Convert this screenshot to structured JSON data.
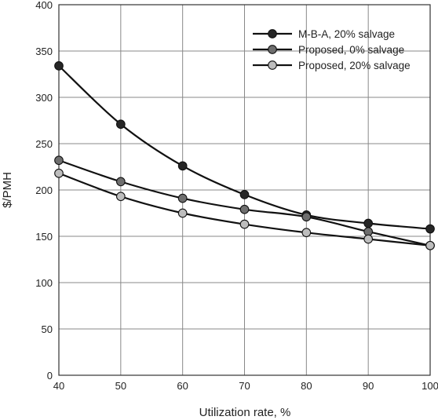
{
  "chart_data": {
    "type": "line",
    "title": "",
    "xlabel": "Utilization rate, %",
    "ylabel": "$/PMH",
    "x": [
      40,
      50,
      60,
      70,
      80,
      90,
      100
    ],
    "xlim": [
      40,
      100
    ],
    "ylim": [
      0,
      400
    ],
    "x_ticks": [
      40,
      50,
      60,
      70,
      80,
      90,
      100
    ],
    "y_ticks": [
      0,
      50,
      100,
      150,
      200,
      250,
      300,
      350,
      400
    ],
    "grid": true,
    "legend_position": "top-right",
    "series": [
      {
        "name": "M-B-A, 20% salvage",
        "color": "#262626",
        "values": [
          334,
          271,
          226,
          195,
          173,
          164,
          158
        ]
      },
      {
        "name": "Proposed, 0% salvage",
        "color": "#6e6e6e",
        "values": [
          232,
          209,
          191,
          179,
          171,
          155,
          140
        ]
      },
      {
        "name": "Proposed, 20% salvage",
        "color": "#bdbdbd",
        "values": [
          218,
          193,
          175,
          163,
          154,
          147,
          140
        ]
      }
    ]
  }
}
